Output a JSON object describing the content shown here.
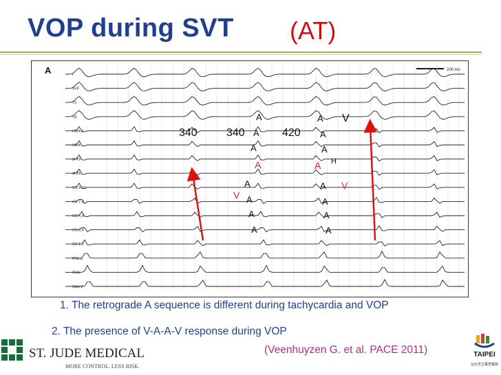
{
  "slide": {
    "title": "VOP during SVT",
    "title_suffix": "(AT)",
    "tracing": {
      "panel_label": "A",
      "scale_label": "200 ms",
      "channels": [
        "I",
        "aVF",
        "V1",
        "V6",
        "HRA d",
        "HRA",
        "pHIS",
        "dHIS",
        "CS 9,10",
        "CS 7,8",
        "CS 5,6",
        "CS 3,4",
        "CS 1,2",
        "RVa p",
        "RVA",
        "Stim 2"
      ],
      "intervals": [
        "340",
        "340",
        "420"
      ],
      "annotations": {
        "a": "A",
        "v": "V",
        "h": "H"
      },
      "colors": {
        "annotation_red": "#dd2222",
        "arrow": "#dd1111",
        "trace": "#222222"
      }
    },
    "notes": [
      "1. The retrograde A sequence is different during tachycardia and VOP",
      "2. The presence of V-A-A-V response during VOP"
    ],
    "citation": "(Veenhuyzen G. et al. PACE 2011)",
    "logos": {
      "left_name": "ST. JUDE MEDICAL",
      "left_tagline": "MORE CONTROL. LESS RISK.",
      "right_name": "TAIPEI",
      "right_sub": "台北市立萬芳醫院"
    },
    "colors": {
      "title": "#1f3f8f",
      "accent_red": "#cc1111",
      "rule": "#8fbf3f",
      "citation": "#b0307a"
    }
  }
}
